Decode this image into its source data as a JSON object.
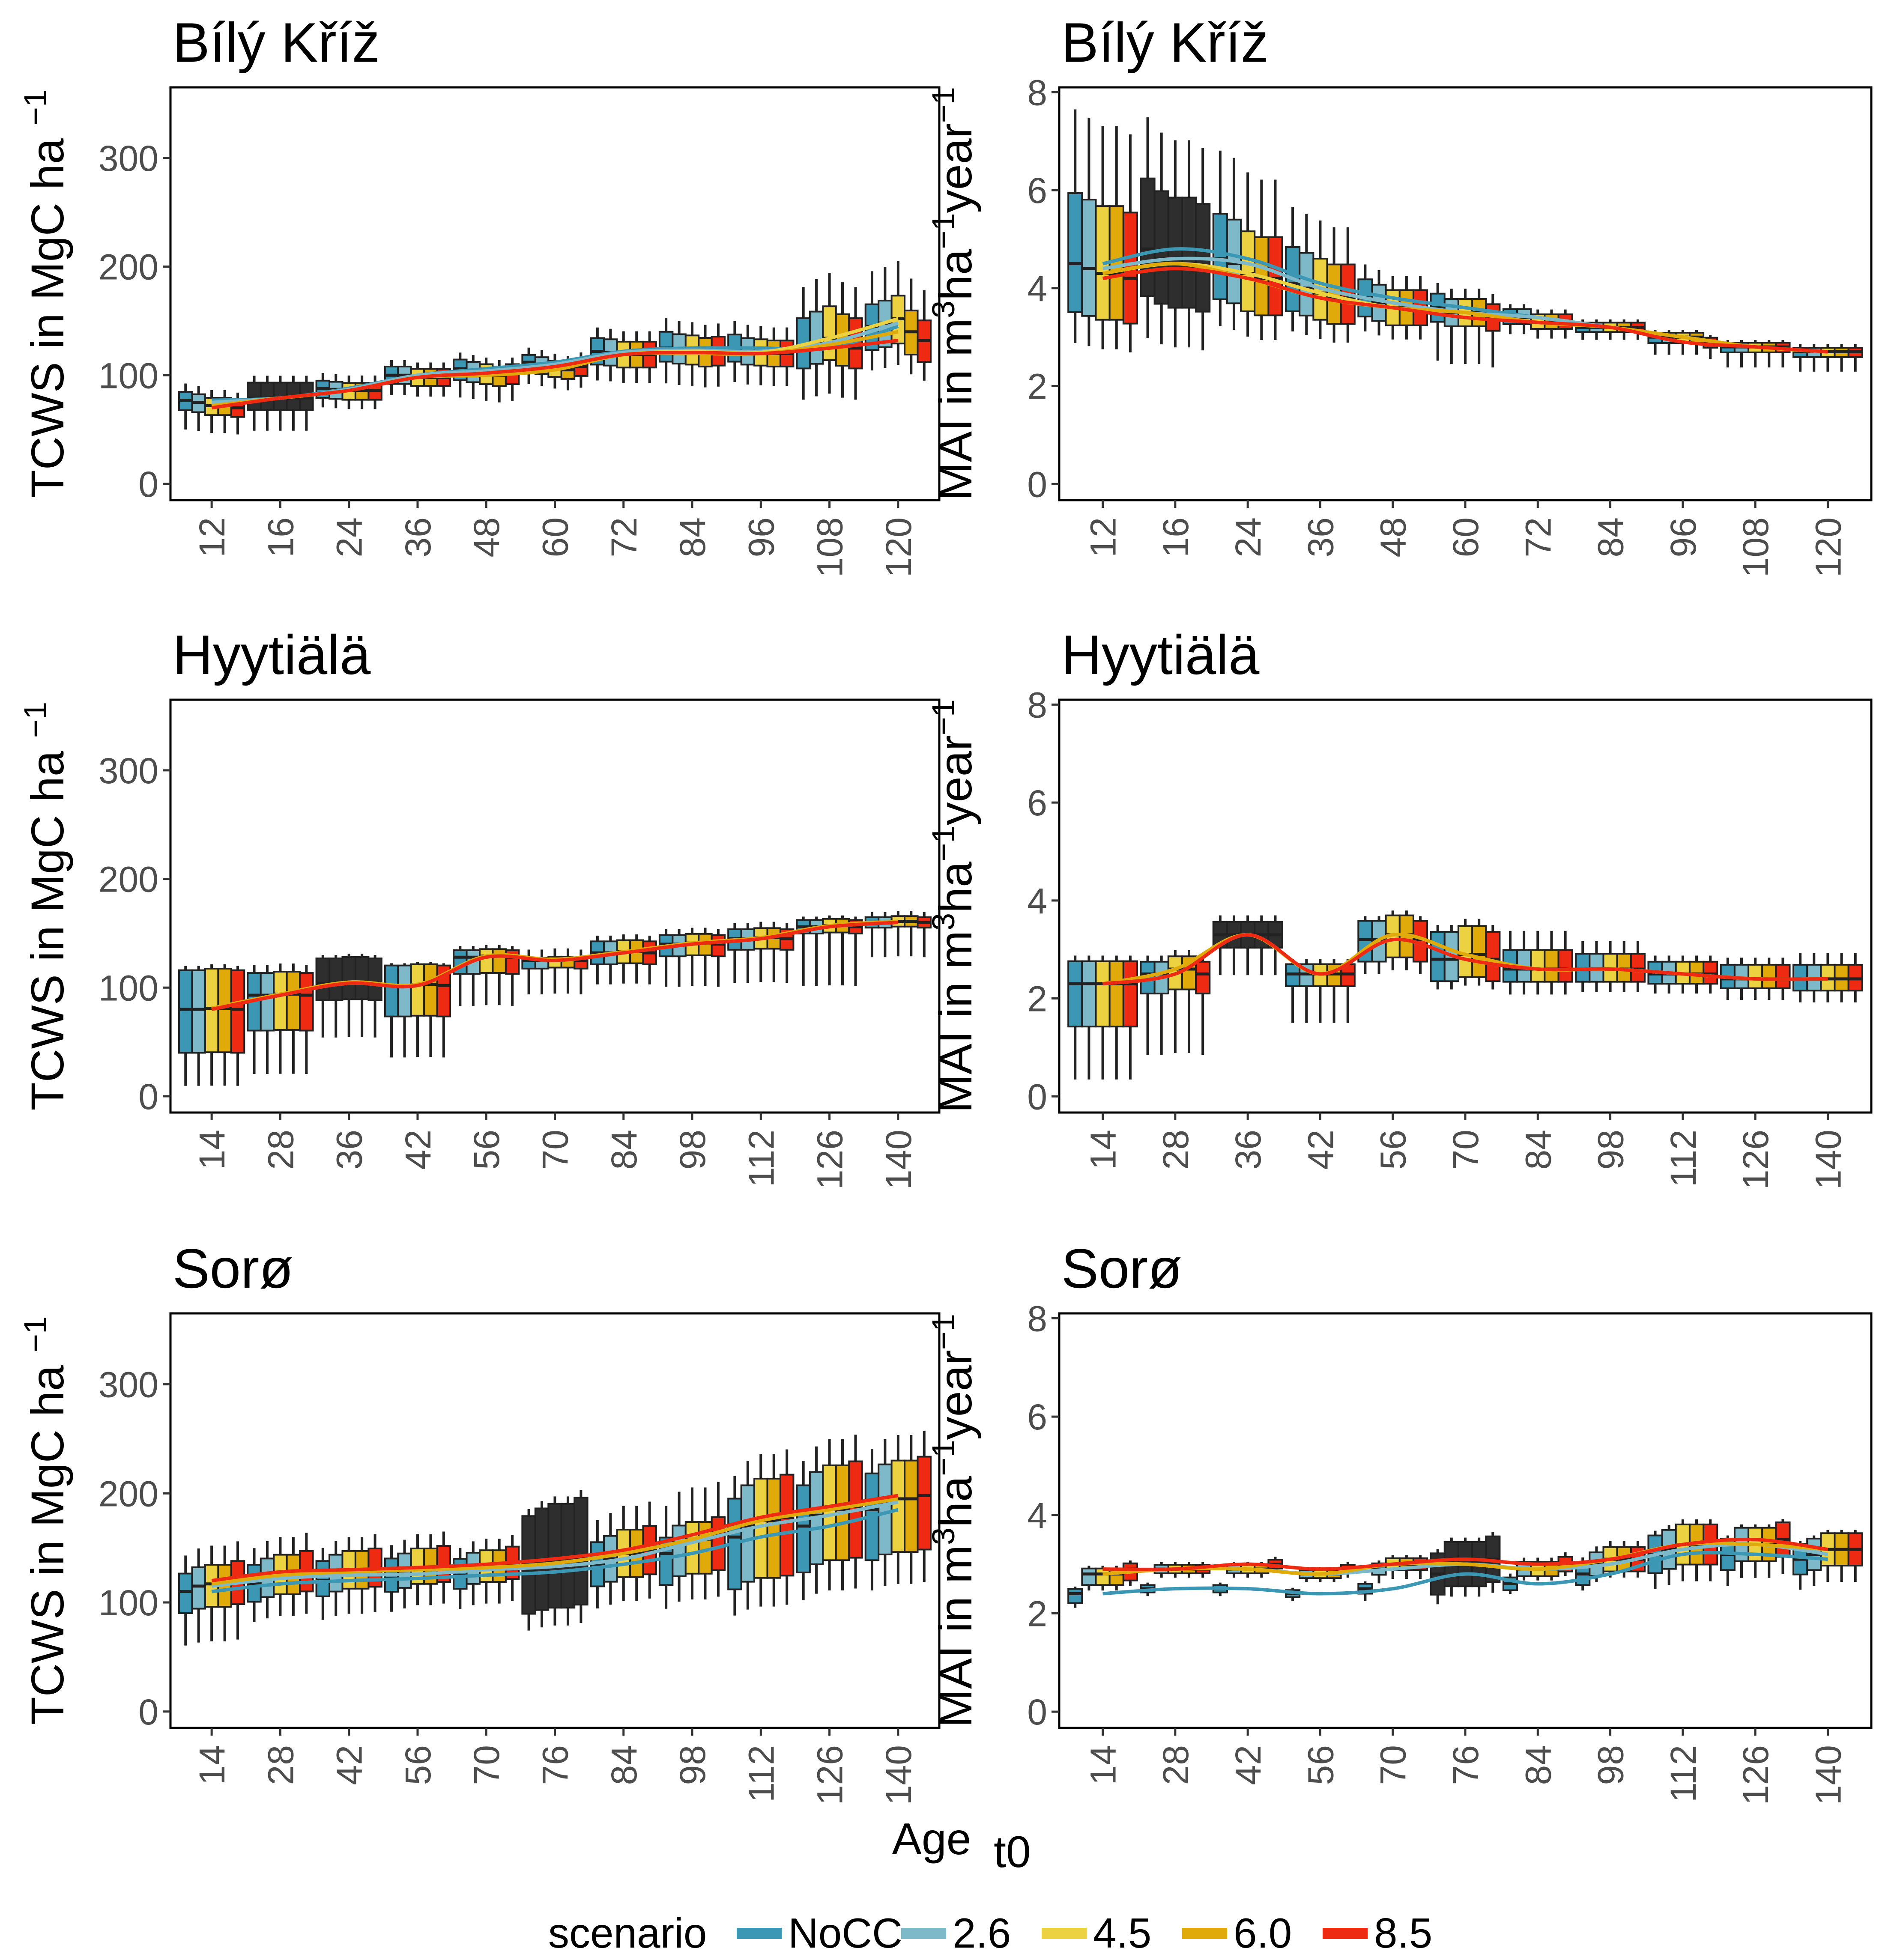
{
  "figure": {
    "xlabel_main": "Age",
    "xlabel_sub": "t0",
    "legend": {
      "title": "scenario",
      "entries": [
        {
          "label": "NoCC",
          "color": "#3b97b3"
        },
        {
          "label": "2.6",
          "color": "#7eb9c9"
        },
        {
          "label": "4.5",
          "color": "#ecd140"
        },
        {
          "label": "6.0",
          "color": "#e0aa0a"
        },
        {
          "label": "8.5",
          "color": "#ee2a12"
        }
      ]
    }
  },
  "chart_data": [
    {
      "id": "bily-tcws",
      "type": "boxplot+smooth",
      "title": "Bílý Kříž",
      "ylabel": {
        "main": "TCWS in MgC ha",
        "sup": "−1"
      },
      "ylim": [
        -15,
        365
      ],
      "yticks": [
        0,
        100,
        200,
        300
      ],
      "categories": [
        "12",
        "16",
        "24",
        "36",
        "48",
        "60",
        "72",
        "84",
        "96",
        "108",
        "120"
      ],
      "dark": [
        1
      ],
      "series": [
        {
          "name": "NoCC",
          "medians": [
            77,
            79,
            88,
            100,
            106,
            112,
            122,
            125,
            125,
            125,
            145
          ]
        },
        {
          "name": "2.6",
          "medians": [
            75,
            79,
            87,
            100,
            104,
            110,
            121,
            123,
            122,
            130,
            148
          ]
        },
        {
          "name": "4.5",
          "medians": [
            72,
            79,
            86,
            98,
            102,
            107,
            119,
            122,
            121,
            134,
            152
          ]
        },
        {
          "name": "6.0",
          "medians": [
            72,
            79,
            86,
            98,
            100,
            105,
            119,
            120,
            120,
            128,
            140
          ]
        },
        {
          "name": "8.5",
          "medians": [
            70,
            79,
            86,
            98,
            102,
            108,
            119,
            121,
            120,
            125,
            132
          ]
        }
      ],
      "box": {
        "q1": [
          0.88,
          0.86,
          0.9,
          0.92,
          0.9,
          0.92,
          0.9,
          0.9,
          0.9,
          0.85,
          0.85
        ],
        "q3": [
          1.1,
          1.18,
          1.08,
          1.08,
          1.08,
          1.06,
          1.1,
          1.12,
          1.1,
          1.22,
          1.14
        ],
        "lo": [
          0.65,
          0.62,
          0.8,
          0.82,
          0.75,
          0.82,
          0.78,
          0.74,
          0.75,
          0.62,
          0.72
        ],
        "hi": [
          1.2,
          1.26,
          1.16,
          1.14,
          1.14,
          1.12,
          1.18,
          1.22,
          1.2,
          1.45,
          1.35
        ]
      }
    },
    {
      "id": "bily-mai",
      "type": "boxplot+smooth",
      "title": "Bílý Kříž",
      "ylabel": {
        "main": "MAI in m",
        "sup1": "3",
        "mid": "ha",
        "sup2": "−1",
        "end": "year",
        "sup3": "−1"
      },
      "ylim": [
        -0.33,
        8.1
      ],
      "yticks": [
        0,
        2,
        4,
        6,
        8
      ],
      "categories": [
        "12",
        "16",
        "24",
        "36",
        "48",
        "60",
        "72",
        "84",
        "96",
        "108",
        "120"
      ],
      "dark": [
        1
      ],
      "series": [
        {
          "name": "NoCC",
          "medians": [
            4.5,
            4.8,
            4.6,
            4.1,
            3.8,
            3.6,
            3.4,
            3.2,
            3.0,
            2.8,
            2.7
          ]
        },
        {
          "name": "2.6",
          "medians": [
            4.4,
            4.6,
            4.5,
            4.0,
            3.7,
            3.5,
            3.4,
            3.2,
            3.0,
            2.8,
            2.7
          ]
        },
        {
          "name": "4.5",
          "medians": [
            4.3,
            4.5,
            4.3,
            3.9,
            3.6,
            3.5,
            3.3,
            3.2,
            3.0,
            2.8,
            2.7
          ]
        },
        {
          "name": "6.0",
          "medians": [
            4.3,
            4.5,
            4.2,
            3.8,
            3.6,
            3.5,
            3.3,
            3.2,
            3.0,
            2.8,
            2.7
          ]
        },
        {
          "name": "8.5",
          "medians": [
            4.2,
            4.4,
            4.2,
            3.8,
            3.6,
            3.4,
            3.3,
            3.2,
            2.9,
            2.8,
            2.7
          ]
        }
      ],
      "box": {
        "q1": [
          0.78,
          0.8,
          0.82,
          0.86,
          0.9,
          0.92,
          0.96,
          0.97,
          0.96,
          0.96,
          0.96
        ],
        "q3": [
          1.32,
          1.3,
          1.2,
          1.18,
          1.1,
          1.08,
          1.05,
          1.03,
          1.03,
          1.03,
          1.03
        ],
        "lo": [
          0.64,
          0.62,
          0.7,
          0.76,
          0.82,
          0.7,
          0.9,
          0.92,
          0.88,
          0.85,
          0.85
        ],
        "hi": [
          1.7,
          1.56,
          1.48,
          1.38,
          1.18,
          1.14,
          1.08,
          1.05,
          1.05,
          1.05,
          1.06
        ]
      }
    },
    {
      "id": "hyy-tcws",
      "type": "boxplot+smooth",
      "title": "Hyytiälä",
      "ylabel": {
        "main": "TCWS in MgC ha",
        "sup": "−1"
      },
      "ylim": [
        -15,
        365
      ],
      "yticks": [
        0,
        100,
        200,
        300
      ],
      "categories": [
        "14",
        "28",
        "36",
        "42",
        "56",
        "70",
        "84",
        "98",
        "112",
        "126",
        "140"
      ],
      "dark": [
        2
      ],
      "series": [
        {
          "name": "NoCC",
          "medians": [
            80,
            93,
            104,
            102,
            128,
            125,
            132,
            140,
            145,
            156,
            160
          ]
        },
        {
          "name": "2.6",
          "medians": [
            80,
            93,
            104,
            102,
            128,
            125,
            132,
            140,
            145,
            156,
            160
          ]
        },
        {
          "name": "4.5",
          "medians": [
            81,
            94,
            105,
            103,
            129,
            126,
            133,
            141,
            146,
            157,
            161
          ]
        },
        {
          "name": "6.0",
          "medians": [
            81,
            94,
            105,
            103,
            129,
            126,
            133,
            141,
            146,
            157,
            161
          ]
        },
        {
          "name": "8.5",
          "medians": [
            80,
            93,
            104,
            102,
            128,
            125,
            132,
            140,
            145,
            156,
            160
          ]
        }
      ],
      "box": {
        "q1": [
          0.5,
          0.65,
          0.85,
          0.72,
          0.88,
          0.94,
          0.92,
          0.92,
          0.93,
          0.96,
          0.97
        ],
        "q3": [
          1.45,
          1.22,
          1.22,
          1.18,
          1.05,
          1.02,
          1.08,
          1.06,
          1.06,
          1.04,
          1.03
        ],
        "lo": [
          0.12,
          0.22,
          0.52,
          0.35,
          0.65,
          0.75,
          0.78,
          0.72,
          0.72,
          0.65,
          0.8
        ],
        "hi": [
          1.5,
          1.3,
          1.25,
          1.2,
          1.08,
          1.08,
          1.12,
          1.1,
          1.1,
          1.06,
          1.06
        ]
      }
    },
    {
      "id": "hyy-mai",
      "type": "boxplot+smooth",
      "title": "Hyytiälä",
      "ylabel": {
        "main": "MAI in m",
        "sup1": "3",
        "mid": "ha",
        "sup2": "−1",
        "end": "year",
        "sup3": "−1"
      },
      "ylim": [
        -0.33,
        8.1
      ],
      "yticks": [
        0,
        2,
        4,
        6,
        8
      ],
      "categories": [
        "14",
        "28",
        "36",
        "42",
        "56",
        "70",
        "84",
        "98",
        "112",
        "126",
        "140"
      ],
      "dark": [
        2
      ],
      "series": [
        {
          "name": "NoCC",
          "medians": [
            2.3,
            2.5,
            3.3,
            2.5,
            3.2,
            2.8,
            2.6,
            2.6,
            2.5,
            2.4,
            2.4
          ]
        },
        {
          "name": "2.6",
          "medians": [
            2.3,
            2.5,
            3.3,
            2.5,
            3.2,
            2.8,
            2.6,
            2.6,
            2.5,
            2.4,
            2.4
          ]
        },
        {
          "name": "4.5",
          "medians": [
            2.3,
            2.6,
            3.3,
            2.5,
            3.3,
            2.9,
            2.6,
            2.6,
            2.5,
            2.4,
            2.4
          ]
        },
        {
          "name": "6.0",
          "medians": [
            2.3,
            2.6,
            3.3,
            2.5,
            3.3,
            2.9,
            2.6,
            2.6,
            2.5,
            2.4,
            2.4
          ]
        },
        {
          "name": "8.5",
          "medians": [
            2.3,
            2.5,
            3.3,
            2.5,
            3.2,
            2.8,
            2.6,
            2.6,
            2.5,
            2.4,
            2.4
          ]
        }
      ],
      "box": {
        "q1": [
          0.62,
          0.84,
          0.92,
          0.9,
          0.86,
          0.84,
          0.9,
          0.9,
          0.92,
          0.92,
          0.9
        ],
        "q3": [
          1.2,
          1.1,
          1.08,
          1.08,
          1.12,
          1.2,
          1.15,
          1.12,
          1.1,
          1.12,
          1.12
        ],
        "lo": [
          0.15,
          0.34,
          0.75,
          0.6,
          0.78,
          0.78,
          0.8,
          0.82,
          0.84,
          0.82,
          0.8
        ],
        "hi": [
          1.25,
          1.15,
          1.12,
          1.12,
          1.15,
          1.25,
          1.3,
          1.22,
          1.15,
          1.18,
          1.22
        ]
      }
    },
    {
      "id": "soro-tcws",
      "type": "boxplot+smooth",
      "title": "Sorø",
      "ylabel": {
        "main": "TCWS in MgC ha",
        "sup": "−1"
      },
      "ylim": [
        -15,
        365
      ],
      "yticks": [
        0,
        100,
        200,
        300
      ],
      "categories": [
        "14",
        "28",
        "42",
        "56",
        "70",
        "76",
        "84",
        "98",
        "112",
        "126",
        "140"
      ],
      "dark": [
        5
      ],
      "series": [
        {
          "name": "NoCC",
          "medians": [
            110,
            117,
            120,
            122,
            125,
            128,
            135,
            145,
            160,
            170,
            185
          ]
        },
        {
          "name": "2.6",
          "medians": [
            115,
            122,
            125,
            126,
            130,
            133,
            140,
            155,
            170,
            180,
            192
          ]
        },
        {
          "name": "4.5",
          "medians": [
            117,
            125,
            128,
            130,
            132,
            136,
            145,
            158,
            175,
            185,
            195
          ]
        },
        {
          "name": "6.0",
          "medians": [
            117,
            125,
            128,
            130,
            132,
            136,
            145,
            158,
            175,
            185,
            195
          ]
        },
        {
          "name": "8.5",
          "medians": [
            120,
            128,
            130,
            132,
            135,
            140,
            148,
            162,
            178,
            188,
            198
          ]
        }
      ],
      "box": {
        "q1": [
          0.82,
          0.86,
          0.88,
          0.9,
          0.9,
          0.7,
          0.85,
          0.8,
          0.7,
          0.75,
          0.75
        ],
        "q3": [
          1.15,
          1.15,
          1.15,
          1.15,
          1.12,
          1.4,
          1.15,
          1.1,
          1.22,
          1.22,
          1.18
        ],
        "lo": [
          0.55,
          0.7,
          0.7,
          0.75,
          0.75,
          0.58,
          0.7,
          0.65,
          0.55,
          0.6,
          0.6
        ],
        "hi": [
          1.3,
          1.28,
          1.25,
          1.25,
          1.2,
          1.45,
          1.3,
          1.3,
          1.35,
          1.35,
          1.3
        ]
      }
    },
    {
      "id": "soro-mai",
      "type": "boxplot+smooth",
      "title": "Sorø",
      "ylabel": {
        "main": "MAI in m",
        "sup1": "3",
        "mid": "ha",
        "sup2": "−1",
        "end": "year",
        "sup3": "−1"
      },
      "ylim": [
        -0.33,
        8.1
      ],
      "yticks": [
        0,
        2,
        4,
        6,
        8
      ],
      "categories": [
        "14",
        "28",
        "42",
        "56",
        "70",
        "76",
        "84",
        "98",
        "112",
        "126",
        "140"
      ],
      "dark": [
        5
      ],
      "series": [
        {
          "name": "NoCC",
          "medians": [
            2.4,
            2.5,
            2.5,
            2.4,
            2.5,
            2.8,
            2.6,
            2.8,
            3.2,
            3.2,
            3.1
          ]
        },
        {
          "name": "2.6",
          "medians": [
            2.8,
            2.9,
            2.9,
            2.8,
            2.9,
            3.0,
            2.9,
            3.0,
            3.3,
            3.4,
            3.2
          ]
        },
        {
          "name": "4.5",
          "medians": [
            2.8,
            2.9,
            2.9,
            2.8,
            3.0,
            3.0,
            2.9,
            3.1,
            3.4,
            3.4,
            3.3
          ]
        },
        {
          "name": "6.0",
          "medians": [
            2.8,
            2.9,
            2.9,
            2.8,
            3.0,
            3.0,
            2.9,
            3.1,
            3.4,
            3.4,
            3.3
          ]
        },
        {
          "name": "8.5",
          "medians": [
            2.9,
            2.9,
            3.0,
            2.9,
            3.0,
            3.1,
            3.0,
            3.1,
            3.4,
            3.5,
            3.3
          ]
        }
      ],
      "box": {
        "q1": [
          0.92,
          0.97,
          0.97,
          0.97,
          0.96,
          0.85,
          0.95,
          0.92,
          0.88,
          0.9,
          0.9
        ],
        "q3": [
          1.04,
          1.03,
          1.03,
          1.03,
          1.04,
          1.15,
          1.05,
          1.08,
          1.12,
          1.1,
          1.1
        ],
        "lo": [
          0.88,
          0.94,
          0.94,
          0.94,
          0.9,
          0.78,
          0.92,
          0.88,
          0.78,
          0.8,
          0.8
        ],
        "hi": [
          1.06,
          1.05,
          1.05,
          1.05,
          1.06,
          1.18,
          1.08,
          1.12,
          1.15,
          1.12,
          1.12
        ]
      }
    }
  ]
}
